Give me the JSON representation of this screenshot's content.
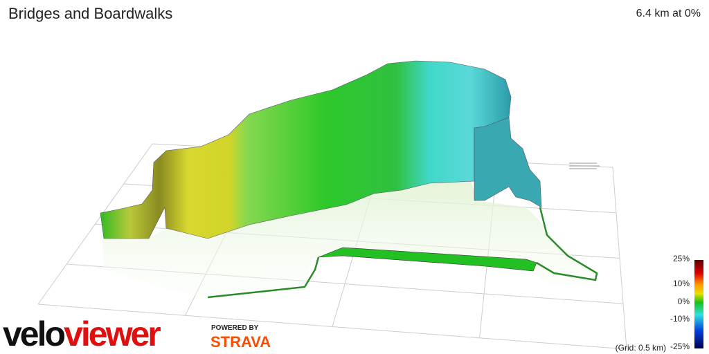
{
  "header": {
    "title": "Bridges and Boardwalks",
    "summary": "6.4 km at 0%"
  },
  "legend": {
    "labels": [
      "25%",
      "10%",
      "0%",
      "-10%",
      "-25%"
    ]
  },
  "grid_note": "(Grid: 0.5 km)",
  "branding": {
    "velo": "velo",
    "viewer": "viewer",
    "powered_by": "POWERED BY",
    "strava": "STRAVA"
  }
}
